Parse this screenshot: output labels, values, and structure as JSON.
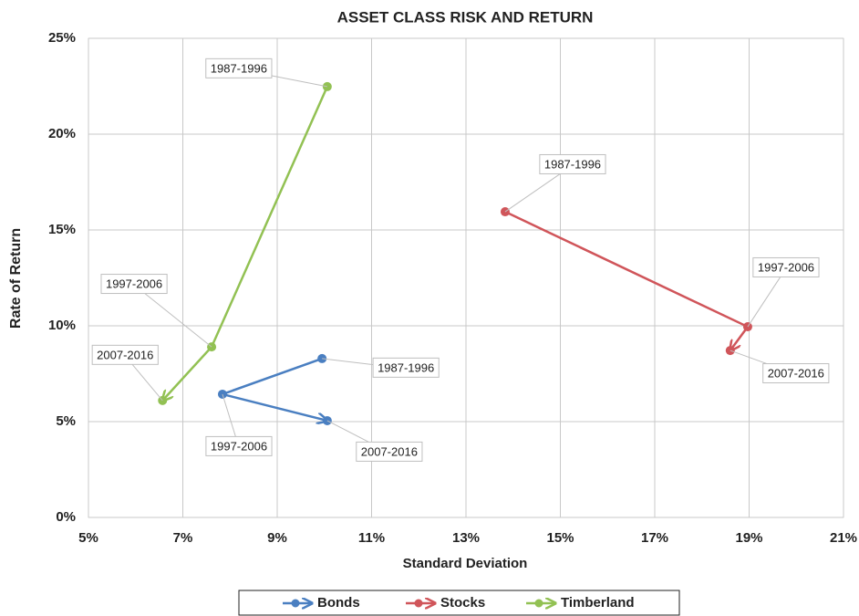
{
  "chart_data": {
    "type": "line-scatter",
    "title": "ASSET CLASS RISK AND RETURN",
    "x_label": "Standard Deviation",
    "y_label": "Rate of Return",
    "xlim": [
      5,
      21
    ],
    "ylim": [
      0,
      25
    ],
    "xticks": [
      {
        "value": 5,
        "label": "5%"
      },
      {
        "value": 7,
        "label": "7%"
      },
      {
        "value": 9,
        "label": "9%"
      },
      {
        "value": 11,
        "label": "11%"
      },
      {
        "value": 13,
        "label": "13%"
      },
      {
        "value": 15,
        "label": "15%"
      },
      {
        "value": 17,
        "label": "17%"
      },
      {
        "value": 19,
        "label": "19%"
      },
      {
        "value": 21,
        "label": "21%"
      }
    ],
    "yticks": [
      {
        "value": 0,
        "label": "0%"
      },
      {
        "value": 5,
        "label": "5%"
      },
      {
        "value": 10,
        "label": "10%"
      },
      {
        "value": 15,
        "label": "15%"
      },
      {
        "value": 20,
        "label": "20%"
      },
      {
        "value": 25,
        "label": "25%"
      }
    ],
    "grid": true,
    "legend": "bottom",
    "series": [
      {
        "name": "Bonds",
        "color": "#4a7fc1",
        "x": [
          9.95,
          7.84,
          10.06
        ],
        "values": [
          8.29,
          6.43,
          5.05
        ],
        "labels": [
          "1987-1996",
          "1997-2006",
          "2007-2016"
        ]
      },
      {
        "name": "Stocks",
        "color": "#d0555a",
        "x": [
          13.83,
          18.97,
          18.6
        ],
        "values": [
          15.95,
          9.95,
          8.71
        ],
        "labels": [
          "1987-1996",
          "1997-2006",
          "2007-2016"
        ]
      },
      {
        "name": "Timberland",
        "color": "#92c153",
        "x": [
          10.06,
          7.61,
          6.57
        ],
        "values": [
          22.48,
          8.9,
          6.1
        ],
        "labels": [
          "1987-1996",
          "1997-2006",
          "2007-2016"
        ]
      }
    ]
  }
}
